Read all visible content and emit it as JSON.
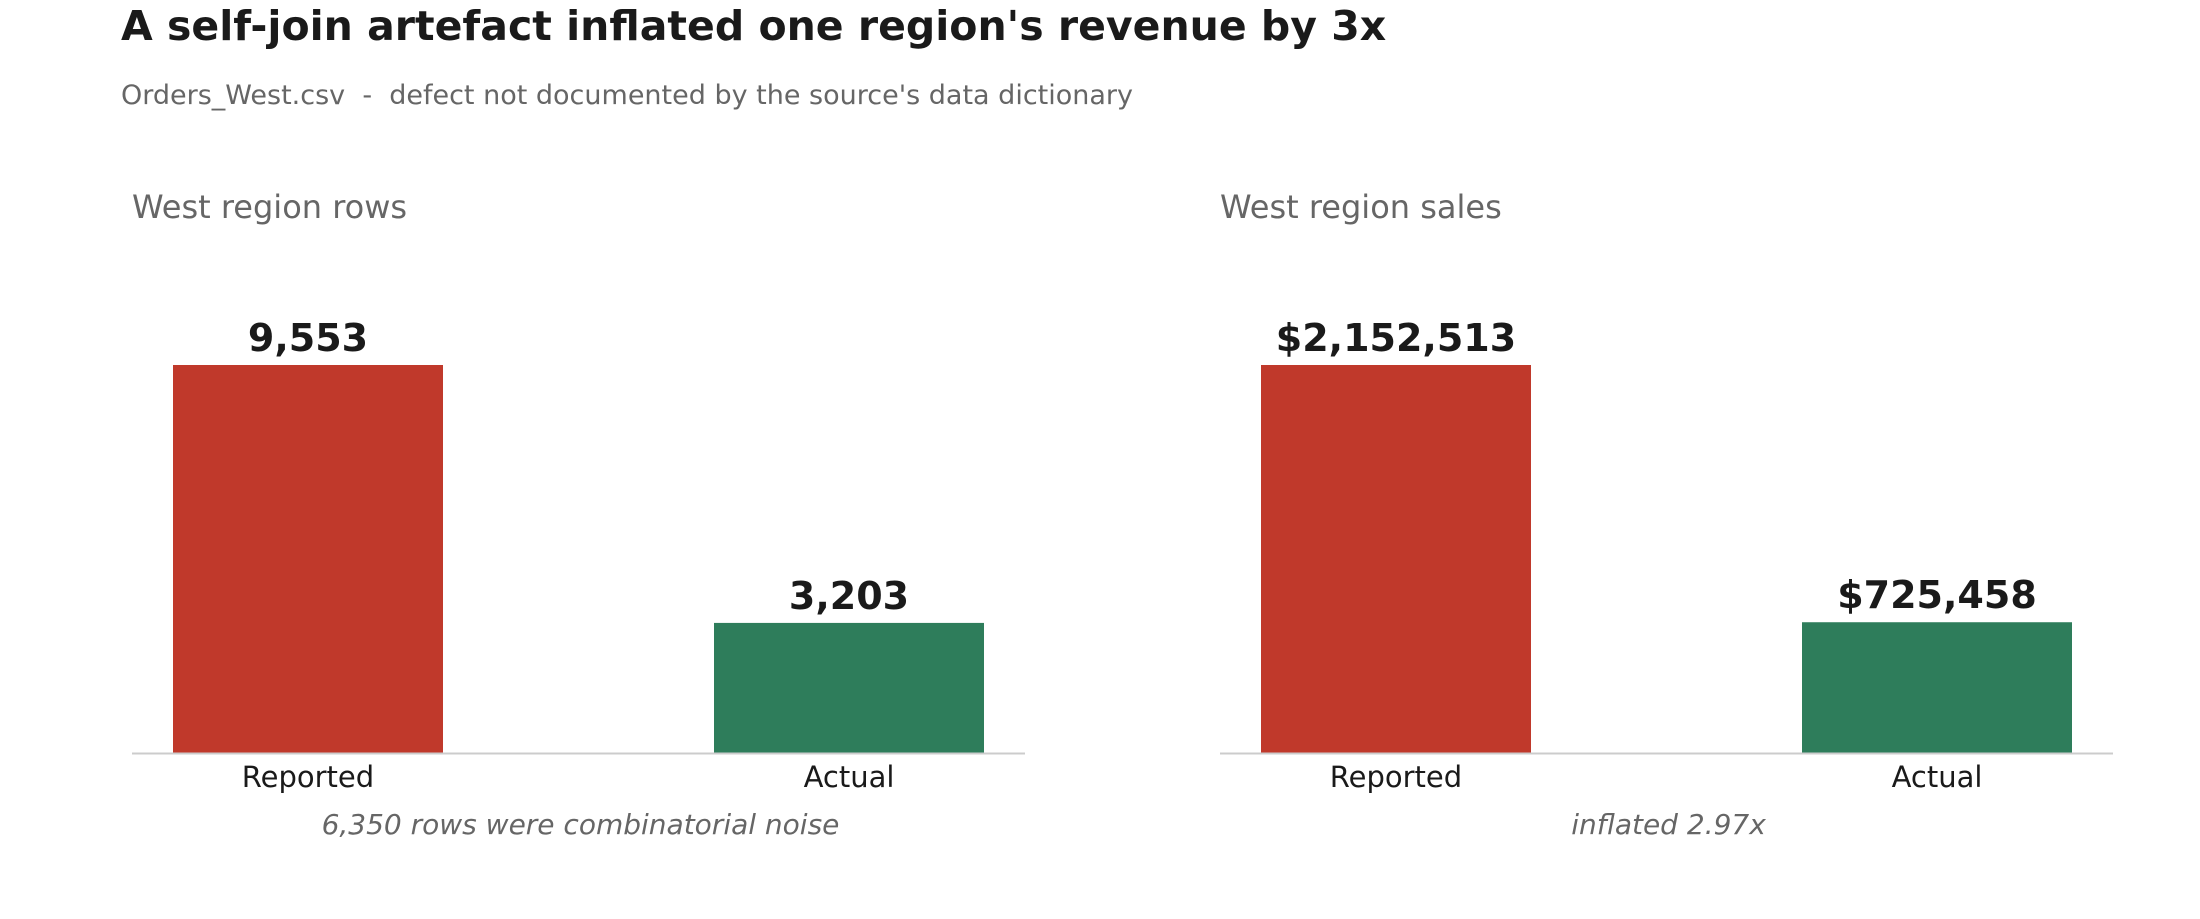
{
  "title": "A self-join artefact inflated one region's revenue by 3x",
  "subtitle": "Orders_West.csv  -  defect not documented by the source's data dictionary",
  "colors": {
    "reported": "#c0392b",
    "actual": "#2e7d5b",
    "axis": "#cccccc"
  },
  "chart_data": [
    {
      "type": "bar",
      "title": "West region rows",
      "categories": [
        "Reported",
        "Actual"
      ],
      "values": [
        9553,
        3203
      ],
      "value_labels": [
        "9,553",
        "3,203"
      ],
      "annotation": "6,350 rows were combinatorial noise"
    },
    {
      "type": "bar",
      "title": "West region sales",
      "categories": [
        "Reported",
        "Actual"
      ],
      "values": [
        2152513,
        725458
      ],
      "value_labels": [
        "$2,152,513",
        "$725,458"
      ],
      "annotation": "inflated 2.97x"
    }
  ]
}
